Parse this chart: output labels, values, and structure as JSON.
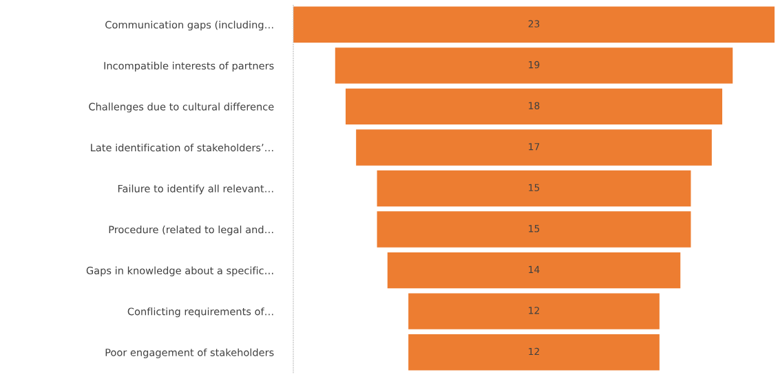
{
  "chart_data": {
    "type": "other",
    "categories": [
      "Communication gaps (including…",
      "Incompatible interests of partners",
      "Challenges due to cultural difference",
      "Late identification of stakeholders’…",
      "Failure to identify all relevant…",
      "Procedure (related to legal and…",
      "Gaps in knowledge about a specific…",
      "Conflicting requirements of…",
      "Poor engagement of stakeholders"
    ],
    "values": [
      23,
      19,
      18,
      17,
      15,
      15,
      14,
      12,
      12
    ],
    "color": "#ed7d31",
    "data_labels": true
  }
}
